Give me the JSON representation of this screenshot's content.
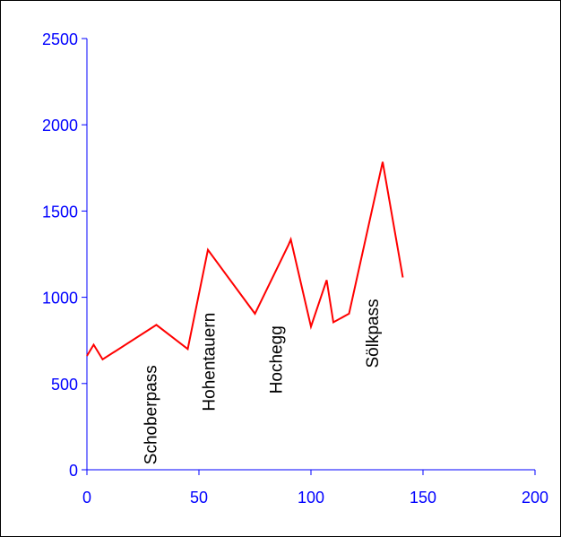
{
  "chart_data": {
    "type": "line",
    "title": "",
    "xlabel": "",
    "ylabel": "",
    "xlim": [
      0,
      200
    ],
    "ylim": [
      0,
      2500
    ],
    "xticks": [
      0,
      50,
      100,
      150,
      200
    ],
    "yticks": [
      0,
      500,
      1000,
      1500,
      2000,
      2500
    ],
    "xtick_labels": [
      "0",
      "50",
      "100",
      "150",
      "200"
    ],
    "ytick_labels": [
      "0",
      "500",
      "1000",
      "1500",
      "2000",
      "2500"
    ],
    "grid": false,
    "legend": "none",
    "series": [
      {
        "color": "#ff0000",
        "x": [
          0,
          3,
          7,
          31,
          45,
          54,
          75,
          90,
          91,
          100,
          107,
          110,
          117,
          132,
          141
        ],
        "y": [
          660,
          725,
          640,
          840,
          700,
          1275,
          905,
          1305,
          1335,
          830,
          1100,
          855,
          905,
          1785,
          1115
        ]
      }
    ],
    "annotations": [
      {
        "text": "Schoberpass",
        "x": 31,
        "y": 30
      },
      {
        "text": "Hohentauern",
        "x": 57,
        "y": 340
      },
      {
        "text": "Hochegg",
        "x": 87,
        "y": 440
      },
      {
        "text": "Sölkpass",
        "x": 130,
        "y": 590
      }
    ],
    "colors": {
      "axis": "#0000ff",
      "tick_text": "#0000ff",
      "line": "#ff0000",
      "annotation": "#000000"
    }
  }
}
